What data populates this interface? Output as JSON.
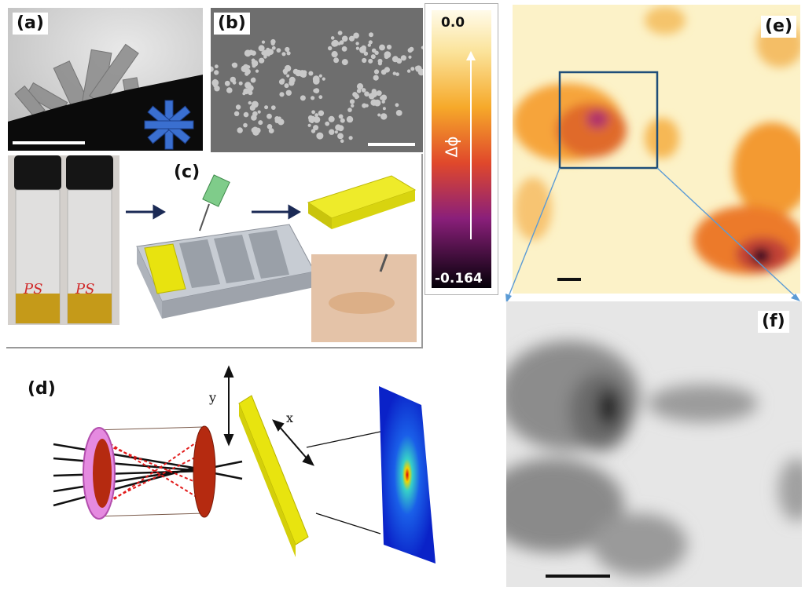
{
  "panels": {
    "a": {
      "label": "(a)"
    },
    "b": {
      "label": "(b)"
    },
    "c": {
      "label": "(c)",
      "vial_text_1": "PS",
      "vial_text_2": "PS"
    },
    "d": {
      "label": "(d)",
      "axis_y": "y",
      "axis_x": "x"
    },
    "e": {
      "label": "(e)"
    },
    "f": {
      "label": "(f)"
    }
  },
  "colorbar": {
    "max_label": "0.0",
    "min_label": "-0.164",
    "quantity_label": "Δϕ",
    "max_value": 0.0,
    "min_value": -0.164
  },
  "colors": {
    "cyl_blue": "#3a6fd0",
    "resin_yellow": "#e6e10a",
    "mold_gray": "#b9bec6",
    "lens_red": "#b52a10",
    "ring_pink": "#e58ae0",
    "zoom_box": "#1f4e79"
  }
}
